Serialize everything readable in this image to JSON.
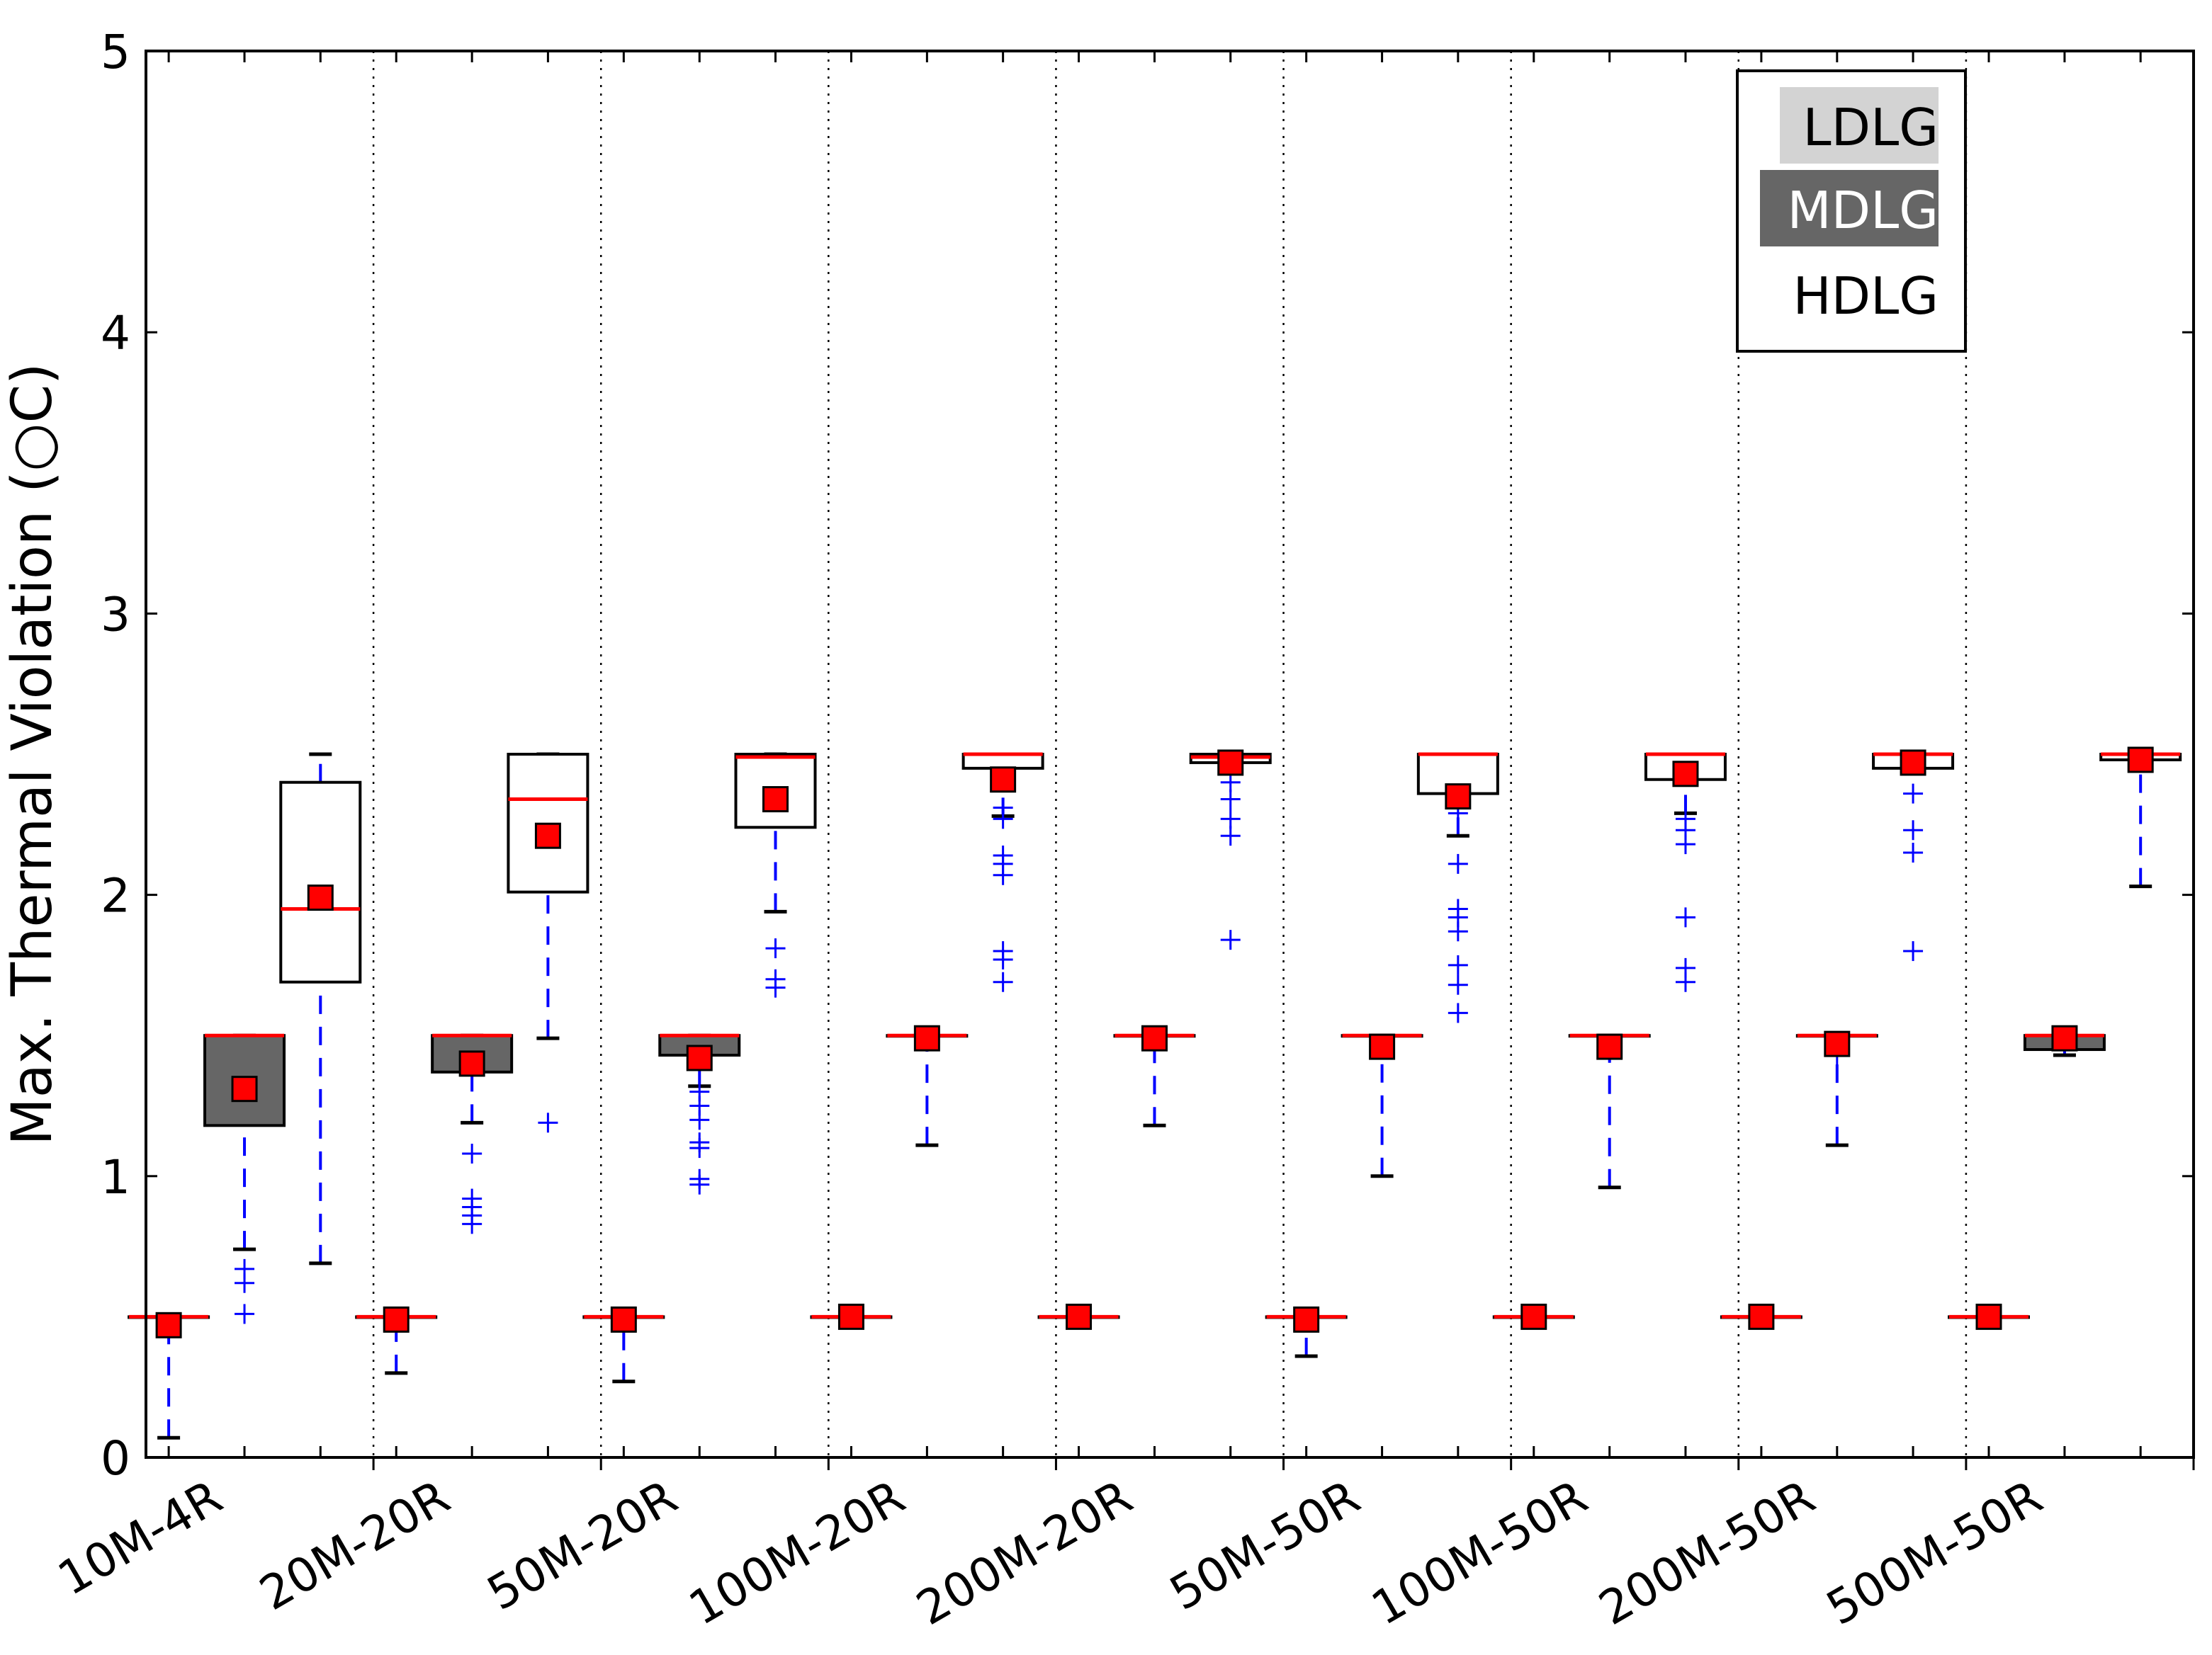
{
  "chart_data": {
    "type": "box",
    "title": "",
    "xlabel": "",
    "ylabel": "Max. Thermal Violation (○C)",
    "ylim": [
      0,
      5
    ],
    "yticks": [
      "0",
      "1",
      "2",
      "3",
      "4",
      "5"
    ],
    "grid": false,
    "legend_position": "top-right",
    "series": [
      {
        "name": "LDLG",
        "fill": "#ffffff"
      },
      {
        "name": "MDLG",
        "fill": "#666666"
      },
      {
        "name": "HDLG",
        "fill": "#ffffff"
      }
    ],
    "categories": [
      "10M-4R",
      "20M-20R",
      "50M-20R",
      "100M-20R",
      "200M-20R",
      "50M-50R",
      "100M-50R",
      "200M-50R",
      "500M-50R"
    ],
    "boxes": [
      {
        "group": 0,
        "series": 0,
        "q1": 0.5,
        "q3": 0.5,
        "median": 0.5,
        "mean": 0.47,
        "whisker_low": 0.07,
        "whisker_high": 0.5,
        "outliers": []
      },
      {
        "group": 0,
        "series": 1,
        "q1": 1.18,
        "q3": 1.5,
        "median": 1.5,
        "mean": 1.31,
        "whisker_low": 0.74,
        "whisker_high": 1.5,
        "outliers": [
          0.51,
          0.62,
          0.67
        ]
      },
      {
        "group": 0,
        "series": 2,
        "q1": 1.69,
        "q3": 2.4,
        "median": 1.95,
        "mean": 1.99,
        "whisker_low": 0.69,
        "whisker_high": 2.5,
        "outliers": []
      },
      {
        "group": 1,
        "series": 0,
        "q1": 0.5,
        "q3": 0.5,
        "median": 0.5,
        "mean": 0.49,
        "whisker_low": 0.3,
        "whisker_high": 0.5,
        "outliers": []
      },
      {
        "group": 1,
        "series": 1,
        "q1": 1.37,
        "q3": 1.5,
        "median": 1.5,
        "mean": 1.4,
        "whisker_low": 1.19,
        "whisker_high": 1.5,
        "outliers": [
          0.83,
          0.86,
          0.89,
          0.92,
          1.08
        ]
      },
      {
        "group": 1,
        "series": 2,
        "q1": 2.01,
        "q3": 2.5,
        "median": 2.34,
        "mean": 2.21,
        "whisker_low": 1.49,
        "whisker_high": 2.5,
        "outliers": [
          1.19
        ]
      },
      {
        "group": 2,
        "series": 0,
        "q1": 0.5,
        "q3": 0.5,
        "median": 0.5,
        "mean": 0.49,
        "whisker_low": 0.27,
        "whisker_high": 0.5,
        "outliers": []
      },
      {
        "group": 2,
        "series": 1,
        "q1": 1.43,
        "q3": 1.5,
        "median": 1.5,
        "mean": 1.42,
        "whisker_low": 1.32,
        "whisker_high": 1.5,
        "outliers": [
          0.97,
          0.99,
          1.1,
          1.12,
          1.2,
          1.25,
          1.3
        ]
      },
      {
        "group": 2,
        "series": 2,
        "q1": 2.24,
        "q3": 2.5,
        "median": 2.49,
        "mean": 2.34,
        "whisker_low": 1.94,
        "whisker_high": 2.5,
        "outliers": [
          1.67,
          1.7,
          1.81
        ]
      },
      {
        "group": 3,
        "series": 0,
        "q1": 0.5,
        "q3": 0.5,
        "median": 0.5,
        "mean": 0.5,
        "whisker_low": 0.5,
        "whisker_high": 0.5,
        "outliers": []
      },
      {
        "group": 3,
        "series": 1,
        "q1": 1.5,
        "q3": 1.5,
        "median": 1.5,
        "mean": 1.49,
        "whisker_low": 1.11,
        "whisker_high": 1.5,
        "outliers": []
      },
      {
        "group": 3,
        "series": 2,
        "q1": 2.45,
        "q3": 2.5,
        "median": 2.5,
        "mean": 2.41,
        "whisker_low": 2.28,
        "whisker_high": 2.5,
        "outliers": [
          1.69,
          1.77,
          1.8,
          2.07,
          2.11,
          2.14,
          2.27,
          2.31
        ]
      },
      {
        "group": 4,
        "series": 0,
        "q1": 0.5,
        "q3": 0.5,
        "median": 0.5,
        "mean": 0.5,
        "whisker_low": 0.5,
        "whisker_high": 0.5,
        "outliers": []
      },
      {
        "group": 4,
        "series": 1,
        "q1": 1.5,
        "q3": 1.5,
        "median": 1.5,
        "mean": 1.49,
        "whisker_low": 1.18,
        "whisker_high": 1.5,
        "outliers": []
      },
      {
        "group": 4,
        "series": 2,
        "q1": 2.47,
        "q3": 2.5,
        "median": 2.49,
        "mean": 2.47,
        "whisker_low": 2.44,
        "whisker_high": 2.5,
        "outliers": [
          1.84,
          2.21,
          2.27,
          2.34,
          2.4
        ]
      },
      {
        "group": 5,
        "series": 0,
        "q1": 0.5,
        "q3": 0.5,
        "median": 0.5,
        "mean": 0.49,
        "whisker_low": 0.36,
        "whisker_high": 0.5,
        "outliers": []
      },
      {
        "group": 5,
        "series": 1,
        "q1": 1.5,
        "q3": 1.5,
        "median": 1.5,
        "mean": 1.46,
        "whisker_low": 1.0,
        "whisker_high": 1.5,
        "outliers": []
      },
      {
        "group": 5,
        "series": 2,
        "q1": 2.36,
        "q3": 2.5,
        "median": 2.5,
        "mean": 2.35,
        "whisker_low": 2.21,
        "whisker_high": 2.5,
        "outliers": [
          1.58,
          1.68,
          1.75,
          1.87,
          1.92,
          1.95,
          2.11,
          2.29
        ]
      },
      {
        "group": 6,
        "series": 0,
        "q1": 0.5,
        "q3": 0.5,
        "median": 0.5,
        "mean": 0.5,
        "whisker_low": 0.5,
        "whisker_high": 0.5,
        "outliers": []
      },
      {
        "group": 6,
        "series": 1,
        "q1": 1.5,
        "q3": 1.5,
        "median": 1.5,
        "mean": 1.46,
        "whisker_low": 0.96,
        "whisker_high": 1.5,
        "outliers": []
      },
      {
        "group": 6,
        "series": 2,
        "q1": 2.41,
        "q3": 2.5,
        "median": 2.5,
        "mean": 2.43,
        "whisker_low": 2.29,
        "whisker_high": 2.5,
        "outliers": [
          1.69,
          1.74,
          1.92,
          2.18,
          2.23,
          2.27
        ]
      },
      {
        "group": 7,
        "series": 0,
        "q1": 0.5,
        "q3": 0.5,
        "median": 0.5,
        "mean": 0.5,
        "whisker_low": 0.5,
        "whisker_high": 0.5,
        "outliers": []
      },
      {
        "group": 7,
        "series": 1,
        "q1": 1.5,
        "q3": 1.5,
        "median": 1.5,
        "mean": 1.47,
        "whisker_low": 1.11,
        "whisker_high": 1.5,
        "outliers": [
          1.43
        ]
      },
      {
        "group": 7,
        "series": 2,
        "q1": 2.45,
        "q3": 2.5,
        "median": 2.5,
        "mean": 2.47,
        "whisker_low": 2.44,
        "whisker_high": 2.5,
        "outliers": [
          1.8,
          2.15,
          2.23,
          2.36
        ]
      },
      {
        "group": 8,
        "series": 0,
        "q1": 0.5,
        "q3": 0.5,
        "median": 0.5,
        "mean": 0.5,
        "whisker_low": 0.5,
        "whisker_high": 0.5,
        "outliers": []
      },
      {
        "group": 8,
        "series": 1,
        "q1": 1.45,
        "q3": 1.5,
        "median": 1.5,
        "mean": 1.49,
        "whisker_low": 1.43,
        "whisker_high": 1.5,
        "outliers": []
      },
      {
        "group": 8,
        "series": 2,
        "q1": 2.48,
        "q3": 2.5,
        "median": 2.5,
        "mean": 2.48,
        "whisker_low": 2.03,
        "whisker_high": 2.5,
        "outliers": []
      }
    ]
  },
  "legend": {
    "items": [
      {
        "label": "LDLG",
        "bg": "#d3d3d3",
        "color": "#000000"
      },
      {
        "label": "MDLG",
        "bg": "#666666",
        "color": "#ffffff"
      },
      {
        "label": "HDLG",
        "bg": "#ffffff",
        "color": "#000000"
      }
    ]
  },
  "colors": {
    "median": "#ff0000",
    "mean_marker": "#ff0000",
    "whisker": "#0000ff",
    "outlier": "#0000ff",
    "cap": "#000000",
    "axis": "#000000"
  }
}
